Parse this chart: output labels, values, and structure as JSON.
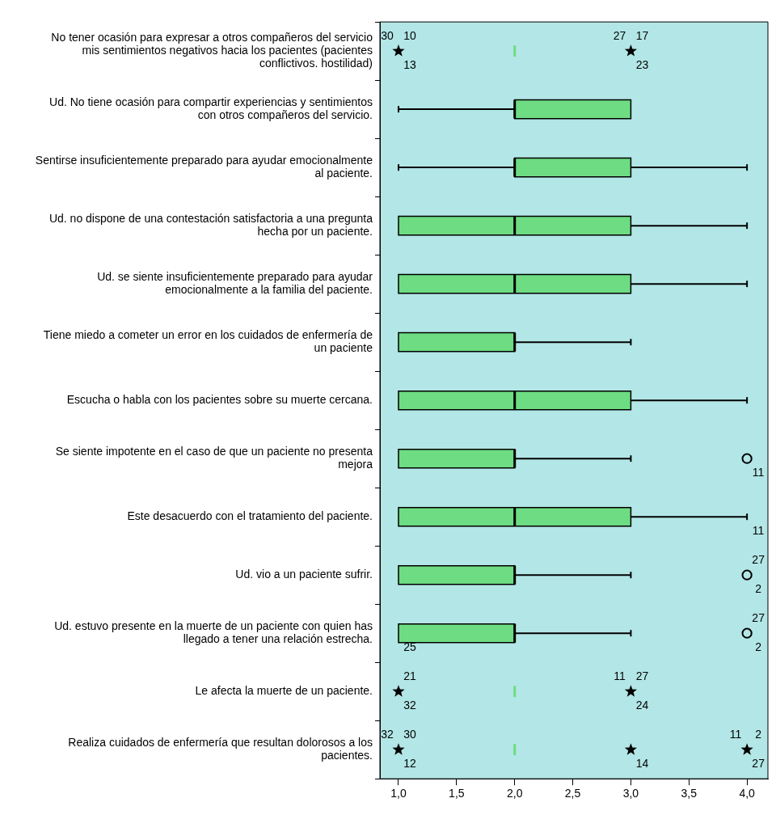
{
  "chart_data": {
    "type": "box",
    "orientation": "horizontal",
    "color": "#6ddc82",
    "categories": [
      "No tener ocasión para expresar a otros compañeros del servicio mis sentimientos negativos hacia los pacientes (pacientes conflictivos. hostilidad)",
      "Ud. No tiene ocasión para compartir experiencias y sentimientos con otros compañeros del servicio.",
      "Sentirse insuficientemente preparado para ayudar emocionalmente al paciente.",
      "Ud. no dispone de una contestación satisfactoria a una pregunta hecha por un paciente.",
      "Ud. se siente insuficientemente preparado para ayudar emocionalmente a la familia del paciente.",
      "Tiene miedo a cometer un error en los cuidados de enfermería de un paciente",
      "Escucha o habla con los pacientes sobre su muerte cercana.",
      "Se siente impotente en el caso de que un paciente no presenta mejora",
      "Este desacuerdo con el tratamiento del paciente.",
      "Ud. vio a un paciente sufrir.",
      "Ud. estuvo presente en la muerte de un paciente con quien has llegado a tener una relación estrecha.",
      "Le afecta la muerte de un paciente.",
      "Realiza cuidados de enfermería que resultan dolorosos a los pacientes."
    ],
    "boxes": [
      {
        "low": 2,
        "q1": 2,
        "median": 2,
        "q3": 2,
        "high": 2
      },
      {
        "low": 1,
        "q1": 2,
        "median": 2,
        "q3": 3,
        "high": 3
      },
      {
        "low": 1,
        "q1": 2,
        "median": 2,
        "q3": 3,
        "high": 4
      },
      {
        "low": 1,
        "q1": 1,
        "median": 2,
        "q3": 3,
        "high": 4
      },
      {
        "low": 1,
        "q1": 1,
        "median": 2,
        "q3": 3,
        "high": 4
      },
      {
        "low": 1,
        "q1": 1,
        "median": 2,
        "q3": 2,
        "high": 3
      },
      {
        "low": 1,
        "q1": 1,
        "median": 2,
        "q3": 3,
        "high": 4
      },
      {
        "low": 1,
        "q1": 1,
        "median": 2,
        "q3": 2,
        "high": 3
      },
      {
        "low": 1,
        "q1": 1,
        "median": 2,
        "q3": 3,
        "high": 4
      },
      {
        "low": 1,
        "q1": 1,
        "median": 2,
        "q3": 2,
        "high": 3
      },
      {
        "low": 1,
        "q1": 1,
        "median": 2,
        "q3": 2,
        "high": 3
      },
      {
        "low": 2,
        "q1": 2,
        "median": 2,
        "q3": 2,
        "high": 2
      },
      {
        "low": 2,
        "q1": 2,
        "median": 2,
        "q3": 2,
        "high": 2
      }
    ],
    "series": [
      {
        "type": "scatter",
        "marker": "star",
        "color": "#000000",
        "x": [
          "No tener ocasión para expresar a otros compañeros del servicio mis sentimientos negativos hacia los pacientes (pacientes conflictivos. hostilidad)",
          "No tener ocasión para expresar a otros compañeros del servicio mis sentimientos negativos hacia los pacientes (pacientes conflictivos. hostilidad)",
          "Le afecta la muerte de un paciente.",
          "Le afecta la muerte de un paciente.",
          "Realiza cuidados de enfermería que resultan dolorosos a los pacientes.",
          "Realiza cuidados de enfermería que resultan dolorosos a los pacientes.",
          "Realiza cuidados de enfermería que resultan dolorosos a los pacientes."
        ],
        "values": [
          1,
          3,
          1,
          3,
          1,
          3,
          4
        ]
      },
      {
        "type": "scatter",
        "marker": "circle",
        "color": "#000000",
        "x": [
          "Se siente impotente en el caso de que un paciente no presenta mejora",
          "Ud. vio a un paciente sufrir.",
          "Ud. estuvo presente en la muerte de un paciente con quien has llegado a tener una relación estrecha."
        ],
        "values": [
          4,
          4,
          4
        ]
      }
    ],
    "xlim": [
      0.84,
      4.18
    ],
    "xticks": [
      {
        "value": 1,
        "label": "1,0"
      },
      {
        "value": 1.5,
        "label": "1,5"
      },
      {
        "value": 2,
        "label": "2,0"
      },
      {
        "value": 2.5,
        "label": "2,5"
      },
      {
        "value": 3,
        "label": "3,0"
      },
      {
        "value": 3.5,
        "label": "3,5"
      },
      {
        "value": 4,
        "label": "4,0"
      }
    ],
    "grid": false,
    "annotations": [
      {
        "text": "30",
        "x": 1,
        "y": "No tener ocasión para expresar a otros compañeros del servicio mis sentimientos negativos hacia los pacientes (pacientes conflictivos. hostilidad)"
      },
      {
        "text": "10",
        "x": 1,
        "y": "No tener ocasión para expresar a otros compañeros del servicio mis sentimientos negativos hacia los pacientes (pacientes conflictivos. hostilidad)"
      },
      {
        "text": "13",
        "x": 1,
        "y": "No tener ocasión para expresar a otros compañeros del servicio mis sentimientos negativos hacia los pacientes (pacientes conflictivos. hostilidad)"
      },
      {
        "text": "27",
        "x": 3,
        "y": "No tener ocasión para expresar a otros compañeros del servicio mis sentimientos negativos hacia los pacientes (pacientes conflictivos. hostilidad)"
      },
      {
        "text": "17",
        "x": 3,
        "y": "No tener ocasión para expresar a otros compañeros del servicio mis sentimientos negativos hacia los pacientes (pacientes conflictivos. hostilidad)"
      },
      {
        "text": "23",
        "x": 3,
        "y": "No tener ocasión para expresar a otros compañeros del servicio mis sentimientos negativos hacia los pacientes (pacientes conflictivos. hostilidad)"
      },
      {
        "text": "11",
        "x": 4,
        "y": "Se siente impotente en el caso de que un paciente no presenta mejora"
      },
      {
        "text": "11",
        "x": 4,
        "y": "Este desacuerdo con el tratamiento del paciente."
      },
      {
        "text": "27",
        "x": 4,
        "y": "Ud. vio a un paciente sufrir."
      },
      {
        "text": "2",
        "x": 4,
        "y": "Ud. vio a un paciente sufrir."
      },
      {
        "text": "25",
        "x": 1,
        "y": "Ud. estuvo presente en la muerte de un paciente con quien has llegado a tener una relación estrecha."
      },
      {
        "text": "27",
        "x": 4,
        "y": "Ud. estuvo presente en la muerte de un paciente con quien has llegado a tener una relación estrecha."
      },
      {
        "text": "2",
        "x": 4,
        "y": "Ud. estuvo presente en la muerte de un paciente con quien has llegado a tener una relación estrecha."
      },
      {
        "text": "21",
        "x": 1,
        "y": "Le afecta la muerte de un paciente."
      },
      {
        "text": "32",
        "x": 1,
        "y": "Le afecta la muerte de un paciente."
      },
      {
        "text": "11",
        "x": 3,
        "y": "Le afecta la muerte de un paciente."
      },
      {
        "text": "27",
        "x": 3,
        "y": "Le afecta la muerte de un paciente."
      },
      {
        "text": "24",
        "x": 3,
        "y": "Le afecta la muerte de un paciente."
      },
      {
        "text": "32",
        "x": 1,
        "y": "Realiza cuidados de enfermería que resultan dolorosos a los pacientes."
      },
      {
        "text": "30",
        "x": 1,
        "y": "Realiza cuidados de enfermería que resultan dolorosos a los pacientes."
      },
      {
        "text": "12",
        "x": 1,
        "y": "Realiza cuidados de enfermería que resultan dolorosos a los pacientes."
      },
      {
        "text": "14",
        "x": 3,
        "y": "Realiza cuidados de enfermería que resultan dolorosos a los pacientes."
      },
      {
        "text": "11",
        "x": 4,
        "y": "Realiza cuidados de enfermería que resultan dolorosos a los pacientes."
      },
      {
        "text": "2",
        "x": 4,
        "y": "Realiza cuidados de enfermería que resultan dolorosos a los pacientes."
      },
      {
        "text": "27",
        "x": 4,
        "y": "Realiza cuidados de enfermería que resultan dolorosos a los pacientes."
      }
    ]
  }
}
